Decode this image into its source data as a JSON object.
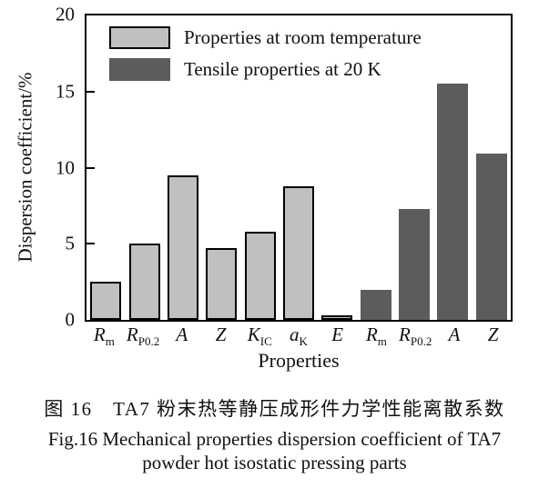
{
  "figure": {
    "caption_cn": "图 16　TA7 粉末热等静压成形件力学性能离散系数",
    "caption_en_line1": "Fig.16 Mechanical properties dispersion coefficient of TA7",
    "caption_en_line2": "powder hot isostatic pressing parts"
  },
  "chart_data": {
    "type": "bar",
    "title": "",
    "xlabel": "Properties",
    "ylabel": "Dispersion coefficient/%",
    "ylim": [
      0,
      20
    ],
    "yticks": [
      0,
      5,
      10,
      15,
      20
    ],
    "grid": false,
    "legend_position": "upper left",
    "categories": [
      "Rm",
      "RP0.2",
      "A",
      "Z",
      "KIC",
      "aK",
      "E",
      "Rm",
      "RP0.2",
      "A",
      "Z"
    ],
    "categories_rich": [
      {
        "b": "R",
        "s": "m"
      },
      {
        "b": "R",
        "s": "P0.2"
      },
      {
        "b": "A"
      },
      {
        "b": "Z"
      },
      {
        "b": "K",
        "s": "IC"
      },
      {
        "b": "a",
        "s": "K"
      },
      {
        "b": "E"
      },
      {
        "b": "R",
        "s": "m"
      },
      {
        "b": "R",
        "s": "P0.2"
      },
      {
        "b": "A"
      },
      {
        "b": "Z"
      }
    ],
    "series": [
      {
        "name": "Properties at room temperature",
        "color": "#c0c0c0",
        "border_color": "#000000",
        "border_px": 2,
        "values": [
          2.5,
          5.0,
          9.5,
          4.7,
          5.8,
          8.8,
          0.3,
          null,
          null,
          null,
          null
        ]
      },
      {
        "name": "Tensile properties at 20 K",
        "color": "#5c5c5c",
        "border_color": "#4f4f4f",
        "border_px": 0,
        "values": [
          null,
          null,
          null,
          null,
          null,
          null,
          null,
          2.0,
          7.3,
          15.5,
          10.9
        ]
      }
    ]
  }
}
